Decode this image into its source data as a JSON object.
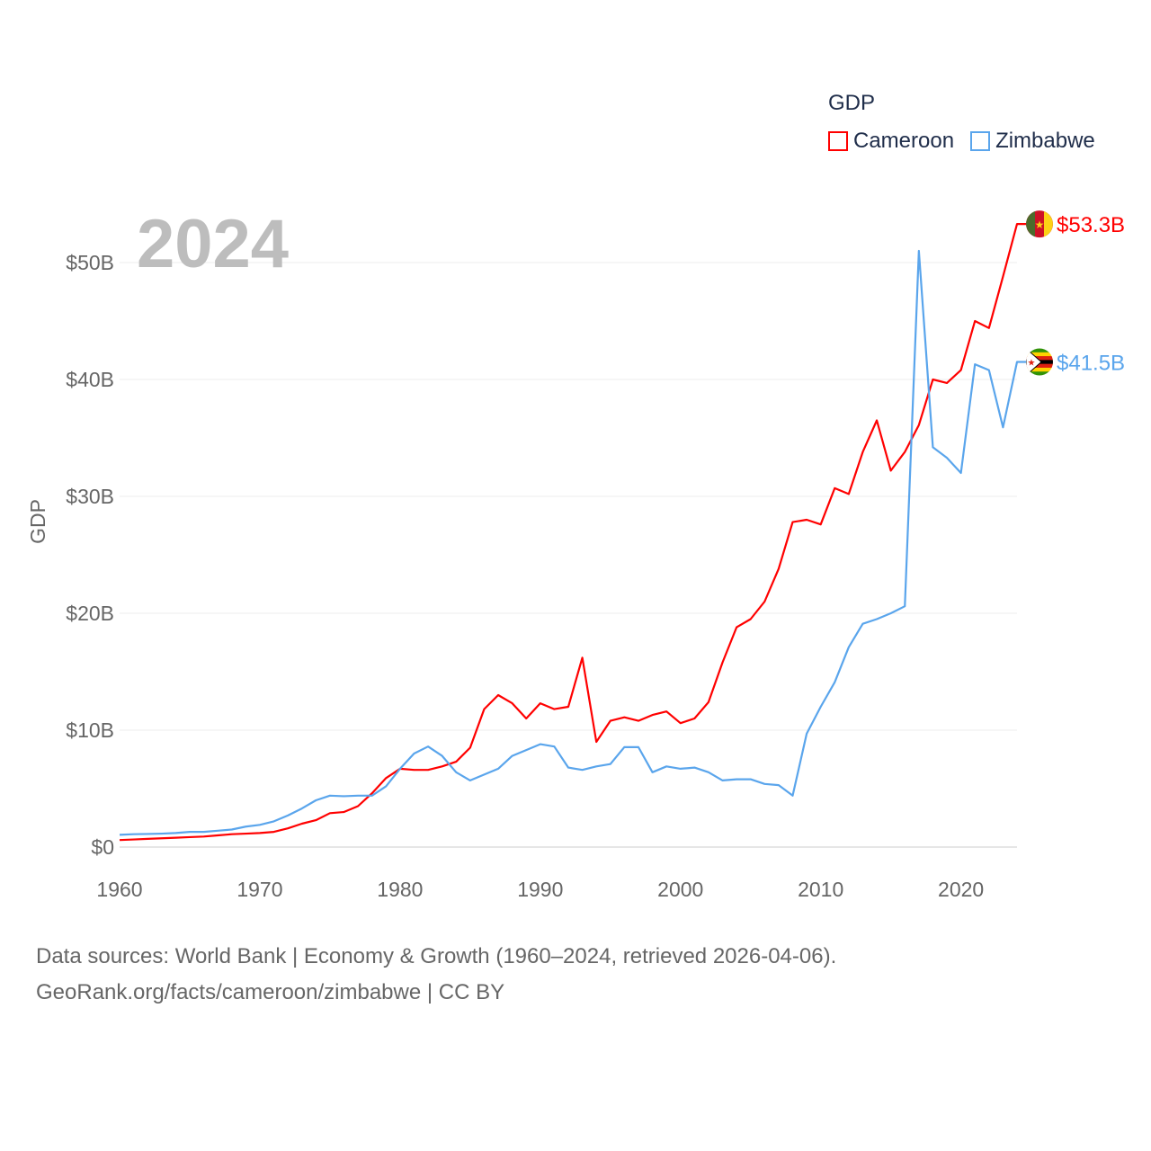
{
  "chart_data": {
    "type": "line",
    "title": "GDP",
    "ylabel": "GDP",
    "xlabel": "",
    "xlim": [
      1960,
      2024
    ],
    "ylim": [
      0,
      55
    ],
    "x_ticks": [
      "1960",
      "1970",
      "1980",
      "1990",
      "2000",
      "2010",
      "2020"
    ],
    "y_ticks": [
      "$0",
      "$10B",
      "$20B",
      "$30B",
      "$40B",
      "$50B"
    ],
    "grid": true,
    "legend_placement": "top-right",
    "year_label": "2024",
    "x": [
      1960,
      1961,
      1962,
      1963,
      1964,
      1965,
      1966,
      1967,
      1968,
      1969,
      1970,
      1971,
      1972,
      1973,
      1974,
      1975,
      1976,
      1977,
      1978,
      1979,
      1980,
      1981,
      1982,
      1983,
      1984,
      1985,
      1986,
      1987,
      1988,
      1989,
      1990,
      1991,
      1992,
      1993,
      1994,
      1995,
      1996,
      1997,
      1998,
      1999,
      2000,
      2001,
      2002,
      2003,
      2004,
      2005,
      2006,
      2007,
      2008,
      2009,
      2010,
      2011,
      2012,
      2013,
      2014,
      2015,
      2016,
      2017,
      2018,
      2019,
      2020,
      2021,
      2022,
      2023,
      2024
    ],
    "series": [
      {
        "name": "Cameroon",
        "color": "#ff0000",
        "end_label": "$53.3B",
        "values": [
          0.6,
          0.65,
          0.7,
          0.75,
          0.8,
          0.85,
          0.9,
          1.0,
          1.1,
          1.15,
          1.2,
          1.3,
          1.6,
          2.0,
          2.3,
          2.9,
          3.0,
          3.5,
          4.6,
          5.9,
          6.7,
          6.6,
          6.6,
          6.9,
          7.3,
          8.5,
          11.8,
          13.0,
          12.3,
          11.0,
          12.3,
          11.8,
          12.0,
          16.2,
          9.0,
          10.8,
          11.1,
          10.8,
          11.3,
          11.6,
          10.6,
          11.0,
          12.4,
          15.8,
          18.8,
          19.5,
          21.0,
          23.8,
          27.8,
          28.0,
          27.6,
          30.7,
          30.2,
          33.8,
          36.5,
          32.2,
          33.8,
          36.1,
          40.0,
          39.7,
          40.8,
          45.0,
          44.4,
          48.8,
          53.3
        ]
      },
      {
        "name": "Zimbabwe",
        "color": "#5aa5ec",
        "end_label": "$41.5B",
        "values": [
          1.05,
          1.1,
          1.12,
          1.15,
          1.2,
          1.3,
          1.3,
          1.4,
          1.5,
          1.75,
          1.9,
          2.2,
          2.7,
          3.3,
          4.0,
          4.4,
          4.35,
          4.4,
          4.4,
          5.2,
          6.7,
          8.0,
          8.6,
          7.8,
          6.4,
          5.7,
          6.2,
          6.7,
          7.8,
          8.3,
          8.8,
          8.6,
          6.8,
          6.6,
          6.9,
          7.1,
          8.55,
          8.55,
          6.4,
          6.9,
          6.7,
          6.8,
          6.4,
          5.7,
          5.8,
          5.8,
          5.4,
          5.3,
          4.4,
          9.7,
          12.0,
          14.1,
          17.1,
          19.1,
          19.5,
          20.0,
          20.6,
          51.0,
          34.2,
          33.3,
          32.0,
          41.3,
          40.8,
          35.9,
          41.5
        ]
      }
    ]
  },
  "footer": {
    "line1": "Data sources: World Bank | Economy & Growth (1960–2024, retrieved 2026-04-06).",
    "line2": "GeoRank.org/facts/cameroon/zimbabwe | CC BY"
  }
}
